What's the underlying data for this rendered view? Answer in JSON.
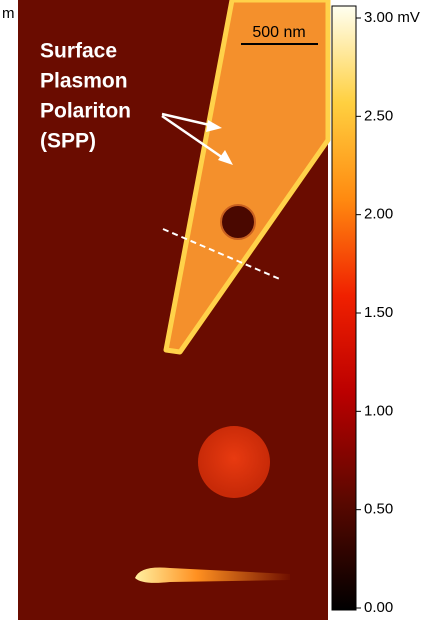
{
  "image": {
    "edge_label": "m",
    "scale_bar": "500 nm",
    "annotation_lines": [
      "Surface",
      "Plasmon",
      "Polariton",
      "(SPP)"
    ]
  },
  "colorbar": {
    "lim": [
      0,
      3
    ],
    "ticks": [
      {
        "value": 3,
        "label": "3.00 mV"
      },
      {
        "value": 2.5,
        "label": "2.50"
      },
      {
        "value": 2,
        "label": "2.00"
      },
      {
        "value": 1.5,
        "label": "1.50"
      },
      {
        "value": 1,
        "label": "1.00"
      },
      {
        "value": 0.5,
        "label": "0.50"
      },
      {
        "value": 0,
        "label": "0.00"
      }
    ]
  }
}
